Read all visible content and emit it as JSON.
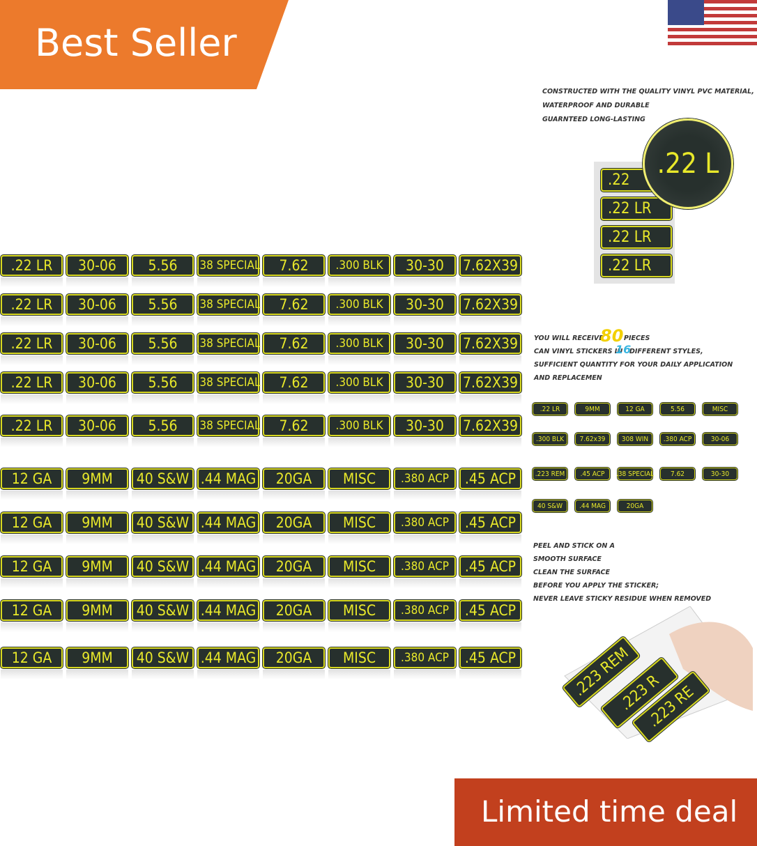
{
  "badge": "Best Seller",
  "deal": "Limited time deal",
  "grid": {
    "rows": [
      [
        ".22 LR",
        "30-06",
        "5.56",
        ".38 SPECIAL",
        "7.62",
        ".300 BLK",
        "30-30",
        "7.62X39"
      ],
      [
        ".22 LR",
        "30-06",
        "5.56",
        ".38 SPECIAL",
        "7.62",
        ".300 BLK",
        "30-30",
        "7.62X39"
      ],
      [
        ".22 LR",
        "30-06",
        "5.56",
        ".38 SPECIAL",
        "7.62",
        ".300 BLK",
        "30-30",
        "7.62X39"
      ],
      [
        ".22 LR",
        "30-06",
        "5.56",
        ".38 SPECIAL",
        "7.62",
        ".300 BLK",
        "30-30",
        "7.62X39"
      ],
      [
        ".22 LR",
        "30-06",
        "5.56",
        ".38 SPECIAL",
        "7.62",
        ".300 BLK",
        "30-30",
        "7.62X39"
      ],
      [
        "12 GA",
        "9MM",
        "40 S&W",
        ".44 MAG",
        "20GA",
        "MISC",
        ".380 ACP",
        ".45 ACP"
      ],
      [
        "12 GA",
        "9MM",
        "40 S&W",
        ".44 MAG",
        "20GA",
        "MISC",
        ".380 ACP",
        ".45 ACP"
      ],
      [
        "12 GA",
        "9MM",
        "40 S&W",
        ".44 MAG",
        "20GA",
        "MISC",
        ".380 ACP",
        ".45 ACP"
      ],
      [
        "12 GA",
        "9MM",
        "40 S&W",
        ".44 MAG",
        "20GA",
        "MISC",
        ".380 ACP",
        ".45 ACP"
      ],
      [
        "12 GA",
        "9MM",
        "40 S&W",
        ".44 MAG",
        "20GA",
        "MISC",
        ".380 ACP",
        ".45 ACP"
      ]
    ]
  },
  "quality": {
    "lines": [
      "CONSTRUCTED WITH THE QUALITY VINYL PVC MATERIAL,",
      "WATERPROOF AND DURABLE",
      "GUARNTEED LONG-LASTING"
    ],
    "zoom": ".22 L",
    "stack": [
      ".22",
      ".22 LR",
      ".22 LR",
      ".22 LR"
    ]
  },
  "receive": {
    "prefix": "YOU WILL RECEIVE",
    "count": "80",
    "count_suffix": "PIECES",
    "styles_prefix": "CAN VINYL STICKERS IN",
    "styles": "16",
    "styles_suffix": "DIFFERENT STYLES,",
    "line3": "SUFFICIENT QUANTITY FOR YOUR DAILY APPLICATION",
    "line4": "AND REPLACEMEN"
  },
  "mini": [
    ".22 LR",
    "9MM",
    "12 GA",
    "5.56",
    "MISC",
    ".300 BLK",
    "7.62x39",
    "308 WIN",
    ".380 ACP",
    "30-06",
    ".223 REM",
    ".45 ACP",
    ".38 SPECIAL",
    "7.62",
    "30-30",
    "40 S&W",
    ".44 MAG",
    "20GA"
  ],
  "peel": {
    "lines": [
      "PEEL AND STICK ON A",
      "SMOOTH SURFACE",
      "CLEAN THE SURFACE",
      "BEFORE YOU APPLY THE STICKER;",
      "NEVER LEAVE STICKY RESIDUE WHEN REMOVED"
    ],
    "stickers": [
      ".223 REM",
      ".223 R",
      ".223 RE"
    ]
  }
}
